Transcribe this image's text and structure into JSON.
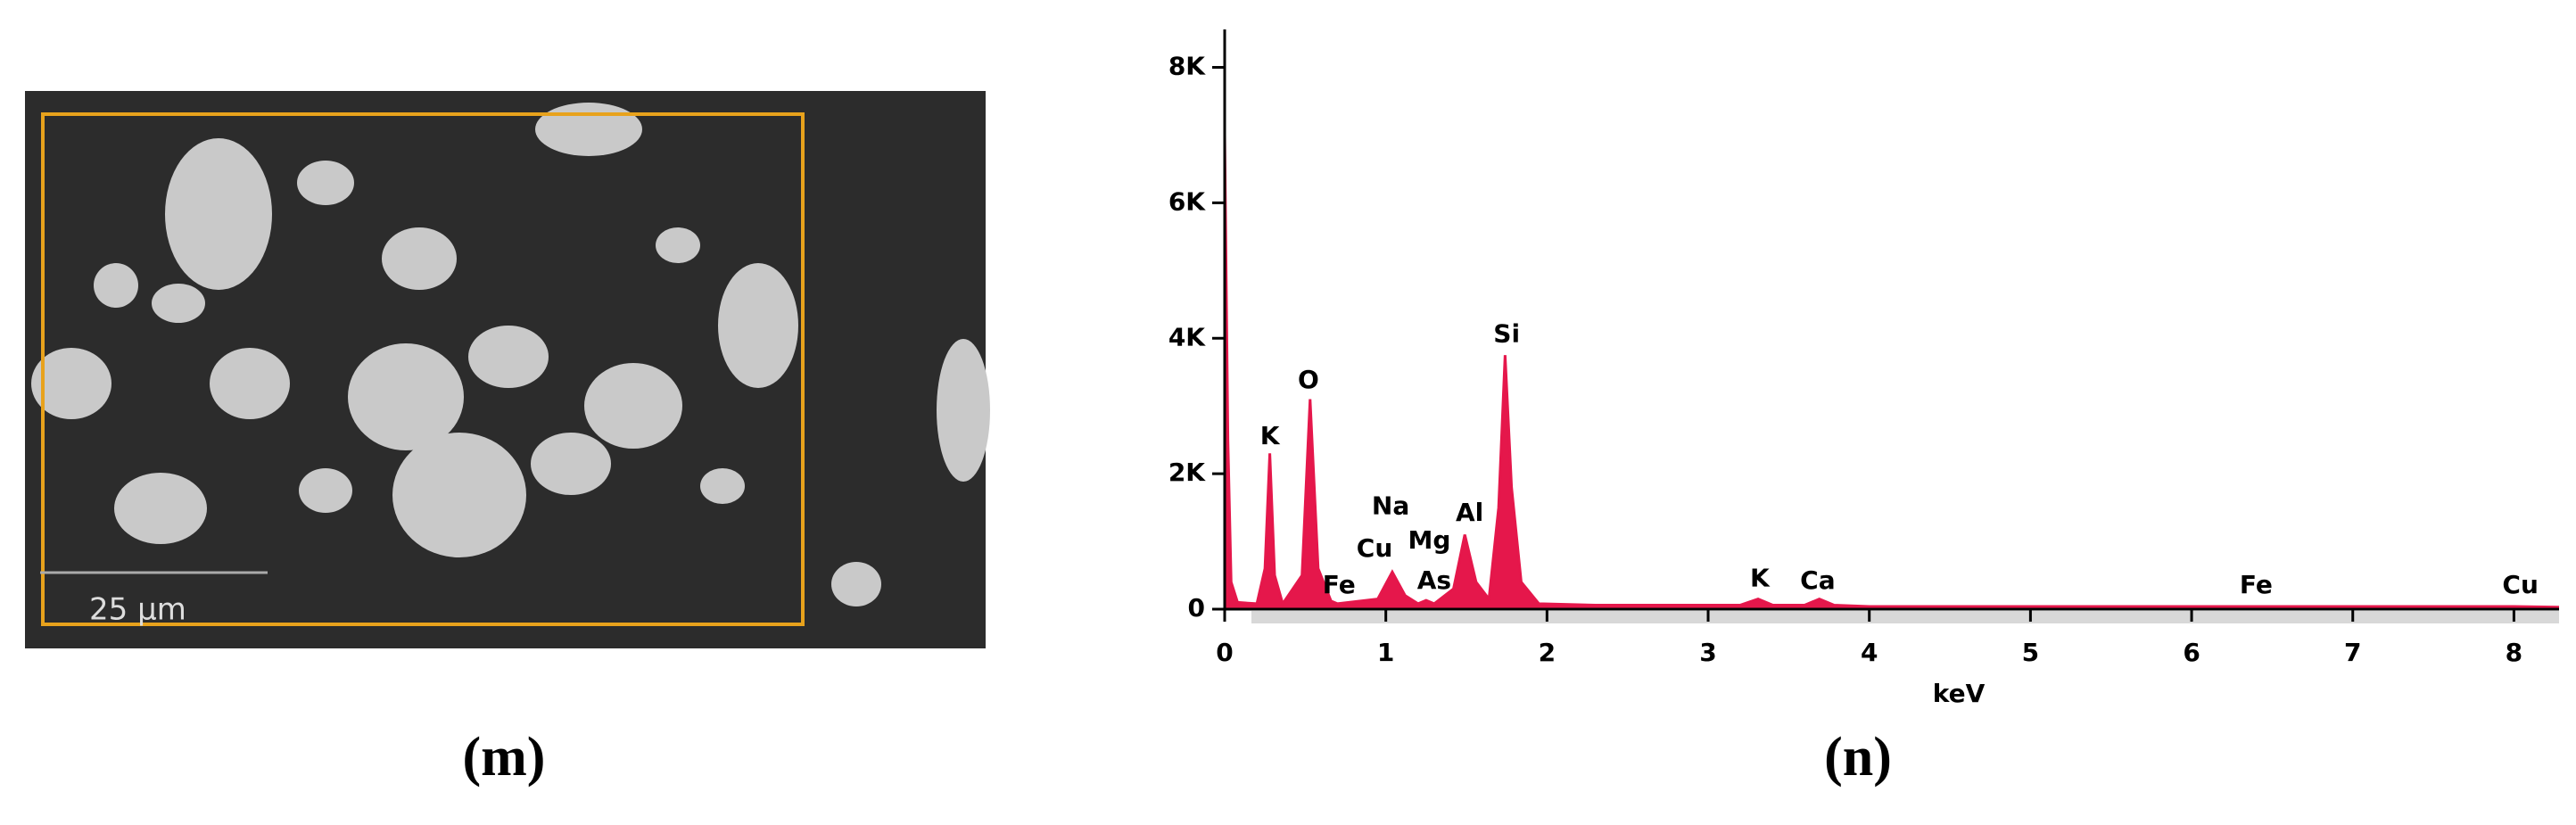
{
  "panels": {
    "m": {
      "caption": "(m)",
      "scale_bar": "25 µm"
    }
  },
  "chart_data": {
    "type": "area",
    "caption": "(n)",
    "xlabel": "keV",
    "color": "#e5174b",
    "x": [
      0,
      0.02,
      0.04,
      0.08,
      0.2,
      0.25,
      0.28,
      0.31,
      0.36,
      0.48,
      0.53,
      0.58,
      0.66,
      0.7,
      0.95,
      1.04,
      1.12,
      1.2,
      1.25,
      1.3,
      1.42,
      1.49,
      1.56,
      1.64,
      1.7,
      1.74,
      1.78,
      1.84,
      1.95,
      2.3,
      3.2,
      3.31,
      3.4,
      3.6,
      3.69,
      3.78,
      4.0,
      6.4,
      8.0,
      8.28
    ],
    "values": [
      7000,
      2500,
      400,
      100,
      80,
      600,
      2300,
      500,
      80,
      500,
      3100,
      600,
      120,
      80,
      150,
      550,
      200,
      80,
      130,
      80,
      300,
      1100,
      400,
      150,
      1500,
      3750,
      1800,
      400,
      80,
      60,
      60,
      150,
      60,
      60,
      150,
      60,
      40,
      40,
      40,
      30
    ],
    "xlim": [
      0,
      8.28
    ],
    "ylim": [
      0,
      8560
    ],
    "xticks": [
      0,
      1,
      2,
      3,
      4,
      5,
      6,
      7,
      8
    ],
    "yticks": [
      0,
      {
        "value": 2000,
        "label": "2K"
      },
      {
        "value": 4000,
        "label": "4K"
      },
      {
        "value": 6000,
        "label": "6K"
      },
      {
        "value": 8000,
        "label": "8K"
      }
    ],
    "annotations": [
      {
        "text": "K",
        "x": 0.28,
        "y": 2540
      },
      {
        "text": "O",
        "x": 0.52,
        "y": 3370
      },
      {
        "text": "Na",
        "x": 1.03,
        "y": 1510
      },
      {
        "text": "Cu",
        "x": 0.93,
        "y": 880
      },
      {
        "text": "Mg",
        "x": 1.27,
        "y": 1000
      },
      {
        "text": "As",
        "x": 1.3,
        "y": 410
      },
      {
        "text": "Al",
        "x": 1.52,
        "y": 1410
      },
      {
        "text": "Si",
        "x": 1.75,
        "y": 4050
      },
      {
        "text": "Fe",
        "x": 0.71,
        "y": 340
      },
      {
        "text": "K",
        "x": 3.32,
        "y": 440
      },
      {
        "text": "Ca",
        "x": 3.68,
        "y": 410
      },
      {
        "text": "Fe",
        "x": 6.4,
        "y": 340
      },
      {
        "text": "Cu",
        "x": 8.04,
        "y": 340
      }
    ]
  }
}
